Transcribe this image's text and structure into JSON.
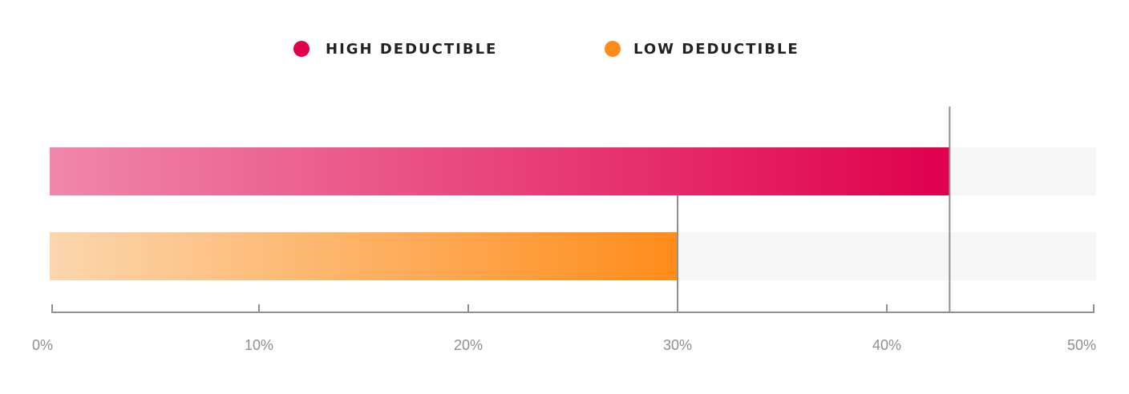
{
  "chart_data": {
    "type": "bar",
    "orientation": "horizontal",
    "title": "",
    "xlabel": "",
    "ylabel": "",
    "xlim": [
      0,
      50
    ],
    "x_ticks": [
      0,
      10,
      20,
      30,
      40,
      50
    ],
    "x_tick_labels": [
      "0%",
      "10%",
      "20%",
      "30%",
      "40%",
      "50%"
    ],
    "legend": {
      "placement": "top-center"
    },
    "series": [
      {
        "name": "HIGH DEDUCTIBLE",
        "value": 43,
        "color": "#e0004d",
        "color_light": "#f087aa"
      },
      {
        "name": "LOW DEDUCTIBLE",
        "value": 30,
        "color": "#ff8c1a",
        "color_light": "#fcd6ae"
      }
    ],
    "track_color": "#f6f6f6",
    "axis_color": "#8f8f8f"
  }
}
